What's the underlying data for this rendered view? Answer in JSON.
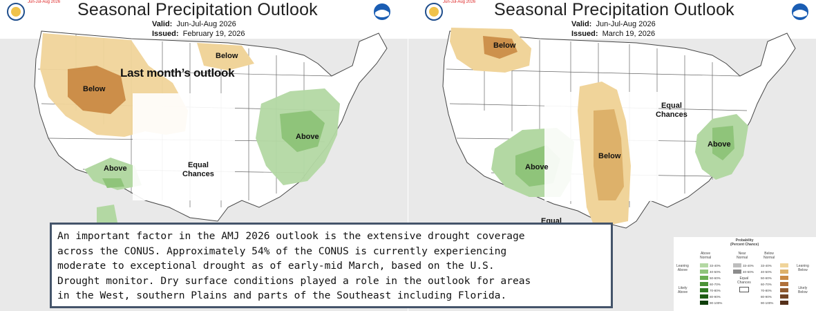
{
  "left_panel": {
    "run_label": "Jun-Jul-Aug 2026",
    "title": "Seasonal Precipitation Outlook",
    "valid_label": "Valid:",
    "valid_value": "Jun-Jul-Aug 2026",
    "issued_label": "Issued:",
    "issued_value": "February 19, 2026",
    "overlay_title": "Last month’s outlook",
    "regions": {
      "below_north": "Below",
      "below_west": "Below",
      "above_east": "Above",
      "above_southwest": "Above",
      "equal_chances": "Equal\nChances"
    }
  },
  "right_panel": {
    "run_label": "Jun-Jul-Aug 2026",
    "title": "Seasonal Precipitation Outlook",
    "valid_label": "Valid:",
    "valid_value": "Jun-Jul-Aug 2026",
    "issued_label": "Issued:",
    "issued_value": "March 19, 2026",
    "regions": {
      "below_northwest": "Below",
      "below_central": "Below",
      "above_southwest": "Above",
      "above_southeast": "Above",
      "equal_chances": "Equal\nChances",
      "equal_partial": "Equal"
    }
  },
  "noaa_logo": "NOAA",
  "text_box": "An important factor in the AMJ 2026 outlook is the extensive drought coverage\nacross the CONUS. Approximately 54% of the CONUS is currently experiencing\nmoderate to exceptional drought as of early-mid March, based on the U.S.\nDrought monitor. Dry surface conditions played a role in the outlook for areas\nin the West, southern Plains and parts of the Southeast including Florida.",
  "legend": {
    "title": "Probability\n(Percent Chance)",
    "col_above": "Above\nNormal",
    "col_near": "Near\nNormal",
    "col_below": "Below\nNormal",
    "leaning_above": "Leaning\nAbove",
    "likely_above": "Likely\nAbove",
    "leaning_below": "Leaning\nBelow",
    "likely_below": "Likely\nBelow",
    "equal_chances": "Equal\nChances",
    "above_ranges": [
      "33-40%",
      "40-50%",
      "50-60%",
      "60-70%",
      "70-80%",
      "80-90%",
      "90-100%"
    ],
    "near_ranges": [
      "33-40%",
      "40-50%"
    ],
    "below_ranges": [
      "33-40%",
      "40-50%",
      "50-60%",
      "60-70%",
      "70-80%",
      "80-90%",
      "90-100%"
    ]
  },
  "colors": {
    "above": [
      "#b3d8a3",
      "#8fc47a",
      "#6aae52",
      "#4a9236",
      "#2f7a22",
      "#1d5c14",
      "#0f3e0a"
    ],
    "near": [
      "#bdbdbd",
      "#8c8c8c"
    ],
    "below": [
      "#f0d49a",
      "#ddb16a",
      "#c98a44",
      "#b0703a",
      "#925b30",
      "#744424",
      "#55301a"
    ]
  }
}
